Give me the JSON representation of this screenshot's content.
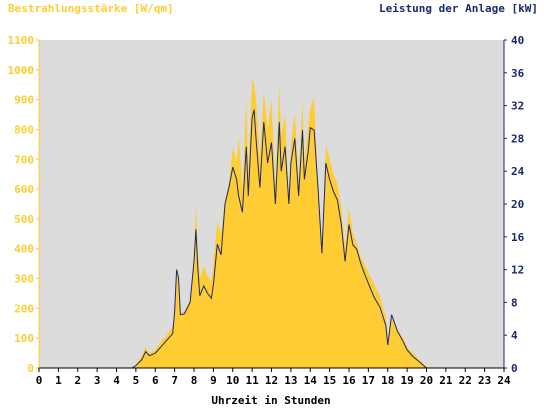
{
  "chart_data": {
    "type": "area",
    "ylabel_left": "Bestrahlungsstärke [W/qm]",
    "ylabel_right": "Leistung der Anlage [kW]",
    "xlabel": "Uhrzeit in Stunden",
    "xlim": [
      0,
      24
    ],
    "ylim_left": [
      0,
      1100
    ],
    "ylim_right": [
      0,
      40
    ],
    "x_ticks": [
      "0",
      "1",
      "2",
      "3",
      "4",
      "5",
      "6",
      "7",
      "8",
      "9",
      "10",
      "11",
      "12",
      "13",
      "14",
      "15",
      "16",
      "17",
      "18",
      "19",
      "20",
      "21",
      "22",
      "23",
      "24"
    ],
    "y_ticks_left": [
      "0",
      "100",
      "200",
      "300",
      "400",
      "500",
      "600",
      "700",
      "800",
      "900",
      "1000",
      "1100"
    ],
    "y_ticks_right": [
      "0",
      "4",
      "8",
      "12",
      "16",
      "20",
      "24",
      "28",
      "32",
      "36",
      "40"
    ],
    "colors": {
      "background": "#dcdcdc",
      "irradiance_fill": "#ffcc33",
      "power_line": "#1a2a6a",
      "left_axis": "#ffcc33",
      "right_axis": "#1a2a6a"
    },
    "grid": false,
    "series": [
      {
        "axis": "left",
        "x": [
          0,
          4.8,
          5.0,
          5.3,
          5.5,
          5.7,
          6.0,
          6.3,
          6.6,
          6.9,
          7.0,
          7.1,
          7.2,
          7.3,
          7.5,
          7.8,
          8.0,
          8.1,
          8.2,
          8.3,
          8.5,
          8.7,
          8.9,
          9.0,
          9.2,
          9.4,
          9.6,
          9.8,
          10.0,
          10.2,
          10.3,
          10.5,
          10.7,
          10.8,
          11.0,
          11.1,
          11.2,
          11.4,
          11.6,
          11.8,
          12.0,
          12.2,
          12.4,
          12.5,
          12.7,
          12.9,
          13.0,
          13.2,
          13.4,
          13.6,
          13.7,
          13.9,
          14.0,
          14.2,
          14.4,
          14.6,
          14.8,
          15.0,
          15.2,
          15.4,
          15.6,
          15.8,
          16.0,
          16.2,
          16.4,
          16.6,
          16.8,
          17.0,
          17.3,
          17.6,
          17.9,
          18.0,
          18.2,
          18.5,
          18.8,
          19.0,
          19.3,
          19.6,
          19.9,
          20.0,
          20.2,
          20.5,
          24
        ],
        "y": [
          0,
          0,
          10,
          40,
          70,
          50,
          60,
          90,
          110,
          140,
          200,
          330,
          310,
          180,
          190,
          230,
          380,
          550,
          400,
          300,
          340,
          310,
          290,
          350,
          490,
          450,
          560,
          620,
          740,
          690,
          780,
          600,
          900,
          650,
          970,
          950,
          900,
          700,
          930,
          800,
          900,
          600,
          950,
          780,
          850,
          540,
          750,
          860,
          620,
          900,
          680,
          820,
          870,
          910,
          600,
          400,
          750,
          700,
          650,
          620,
          540,
          400,
          540,
          450,
          420,
          370,
          350,
          320,
          280,
          240,
          170,
          90,
          180,
          130,
          100,
          70,
          50,
          30,
          10,
          5,
          0,
          0,
          0
        ]
      },
      {
        "axis": "right",
        "x": [
          0,
          4.8,
          5.0,
          5.3,
          5.5,
          5.7,
          6.0,
          6.3,
          6.6,
          6.9,
          7.0,
          7.1,
          7.2,
          7.3,
          7.5,
          7.8,
          8.0,
          8.1,
          8.2,
          8.3,
          8.5,
          8.7,
          8.9,
          9.0,
          9.2,
          9.4,
          9.6,
          9.8,
          10.0,
          10.2,
          10.3,
          10.5,
          10.7,
          10.8,
          11.0,
          11.1,
          11.2,
          11.4,
          11.6,
          11.8,
          12.0,
          12.2,
          12.4,
          12.5,
          12.7,
          12.9,
          13.0,
          13.2,
          13.4,
          13.6,
          13.7,
          13.9,
          14.0,
          14.2,
          14.4,
          14.6,
          14.8,
          15.0,
          15.2,
          15.4,
          15.6,
          15.8,
          16.0,
          16.2,
          16.4,
          16.6,
          16.8,
          17.0,
          17.3,
          17.6,
          17.9,
          18.0,
          18.2,
          18.5,
          18.8,
          19.0,
          19.3,
          19.6,
          19.9,
          20.0,
          20.2,
          20.5,
          24
        ],
        "y": [
          0,
          0,
          0.3,
          1.0,
          2.0,
          1.5,
          1.8,
          2.6,
          3.4,
          4.2,
          6.8,
          12.0,
          11.0,
          6.5,
          6.6,
          8.0,
          13.0,
          16.9,
          12.0,
          8.8,
          10.0,
          9.1,
          8.5,
          10.2,
          15.1,
          13.8,
          20.0,
          22.0,
          24.5,
          23.0,
          21.0,
          19.0,
          27.0,
          21.0,
          30.5,
          31.5,
          28.0,
          22.0,
          30.0,
          25.0,
          27.5,
          20.0,
          30.0,
          24.0,
          27.0,
          20.0,
          25.0,
          28.0,
          21.0,
          29.0,
          23.0,
          26.5,
          29.3,
          29.0,
          22.0,
          14.0,
          25.0,
          23.0,
          21.5,
          20.5,
          17.5,
          13.0,
          17.5,
          15.0,
          14.5,
          12.8,
          11.5,
          10.3,
          8.6,
          7.4,
          5.2,
          2.8,
          6.5,
          4.5,
          3.2,
          2.2,
          1.4,
          0.8,
          0.2,
          0,
          0,
          0,
          0
        ]
      }
    ]
  }
}
